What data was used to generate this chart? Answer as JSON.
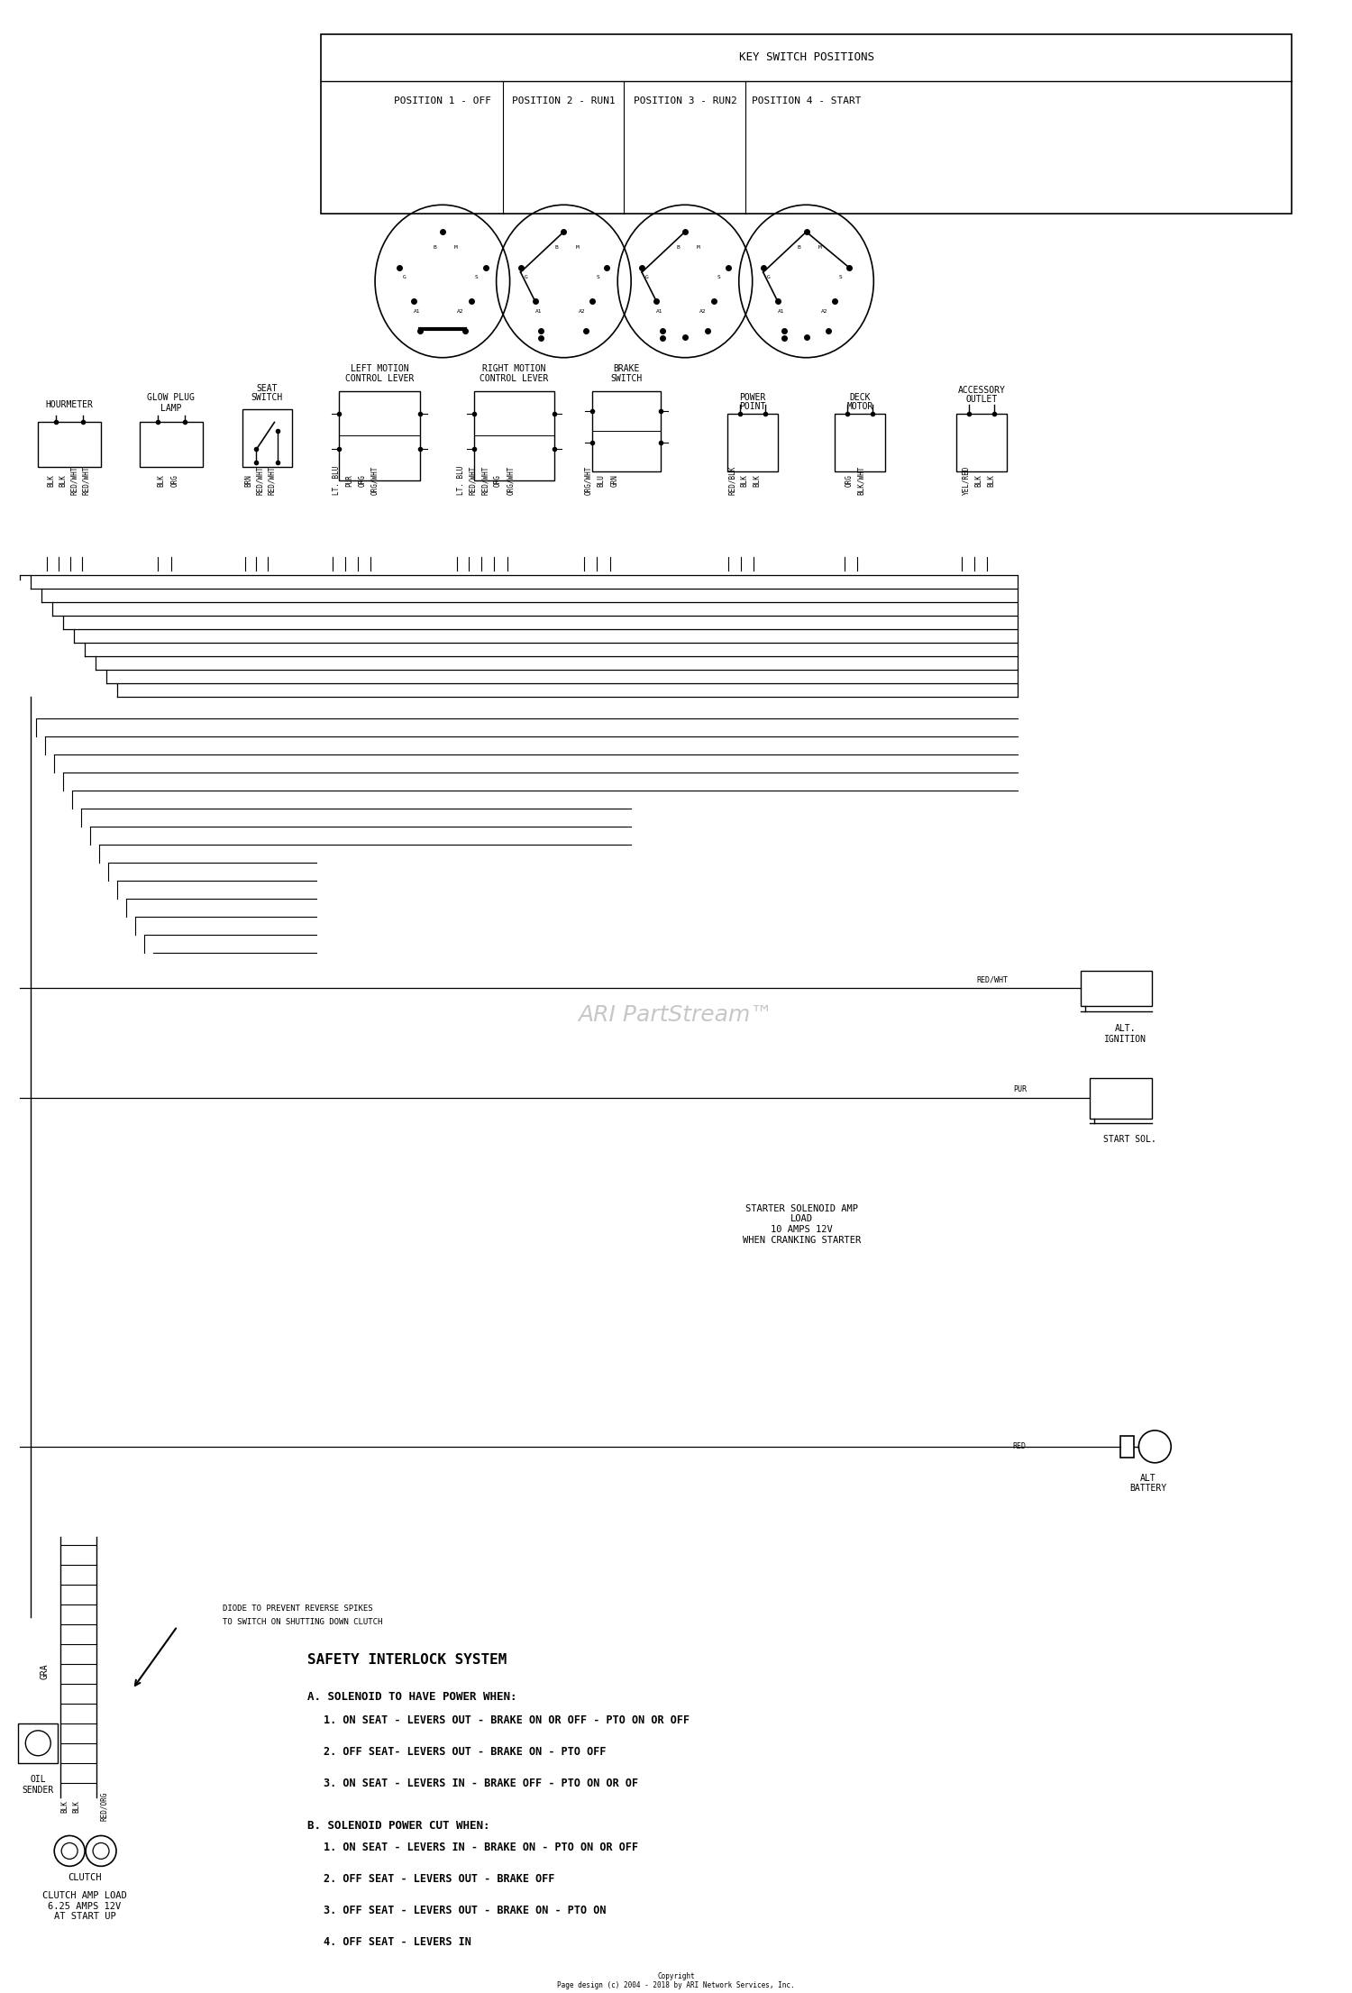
{
  "bg_color": "#ffffff",
  "line_color": "#000000",
  "key_switch_title": "KEY SWITCH POSITIONS",
  "key_switch_positions": [
    "POSITION 1 - OFF",
    "POSITION 2 - RUN1",
    "POSITION 3 - RUN2",
    "POSITION 4 - START"
  ],
  "safety_title": "SAFETY INTERLOCK SYSTEM",
  "safety_a_title": "A. SOLENOID TO HAVE POWER WHEN:",
  "safety_a_items": [
    "1. ON SEAT - LEVERS OUT - BRAKE ON OR OFF - PTO ON OR OFF",
    "2. OFF SEAT- LEVERS OUT - BRAKE ON - PTO OFF",
    "3. ON SEAT - LEVERS IN - BRAKE OFF - PTO ON OR OF"
  ],
  "safety_b_title": "B. SOLENOID POWER CUT WHEN:",
  "safety_b_items": [
    "1. ON SEAT - LEVERS IN - BRAKE ON - PTO ON OR OFF",
    "2. OFF SEAT - LEVERS OUT - BRAKE OFF",
    "3. OFF SEAT - LEVERS OUT - BRAKE ON - PTO ON",
    "4. OFF SEAT - LEVERS IN"
  ],
  "clutch_amp_text": "CLUTCH AMP LOAD\n6.25 AMPS 12V\nAT START UP",
  "starter_amp_text": "STARTER SOLENOID AMP\nLOAD\n10 AMPS 12V\nWHEN CRANKING STARTER",
  "watermark": "ARI PartStream™",
  "copyright": "Copyright\nPage design (c) 2004 - 2018 by ARI Network Services, Inc."
}
